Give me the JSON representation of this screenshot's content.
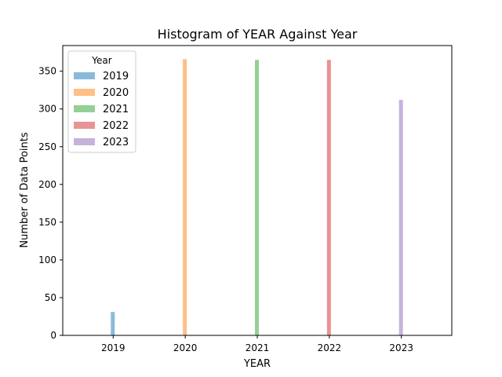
{
  "chart_data": {
    "type": "bar",
    "title": "Histogram of YEAR Against Year",
    "xlabel": "YEAR",
    "ylabel": "Number of Data Points",
    "categories": [
      "2019",
      "2020",
      "2021",
      "2022",
      "2023"
    ],
    "values": [
      31,
      366,
      365,
      365,
      312
    ],
    "xlim": [
      2018.3,
      2023.7
    ],
    "ylim": [
      0,
      384
    ],
    "yticks": [
      0,
      50,
      100,
      150,
      200,
      250,
      300,
      350
    ],
    "grid": false,
    "legend": {
      "title": "Year",
      "placement": "top-left",
      "entries": [
        {
          "label": "2019",
          "color": "#8bbad9"
        },
        {
          "label": "2020",
          "color": "#ffbf86"
        },
        {
          "label": "2021",
          "color": "#95cf95"
        },
        {
          "label": "2022",
          "color": "#ea9394"
        },
        {
          "label": "2023",
          "color": "#c6b3db"
        }
      ]
    },
    "colors": [
      "#8bbad9",
      "#ffbf86",
      "#95cf95",
      "#ea9394",
      "#c6b3db"
    ]
  }
}
